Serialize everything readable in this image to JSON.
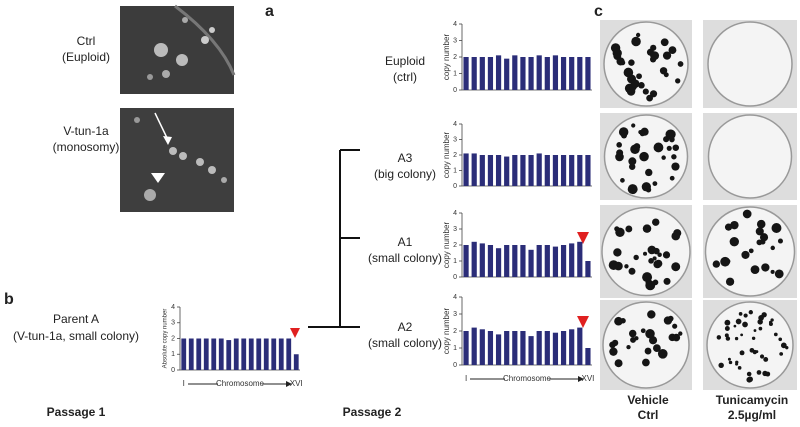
{
  "panels": {
    "a": {
      "label": "a",
      "images": [
        {
          "title": "Ctrl",
          "subtitle": "(Euploid)"
        },
        {
          "title": "V-tun-1a",
          "subtitle": "(monosomy)"
        }
      ]
    },
    "b": {
      "label": "b",
      "passages": [
        "Passage 1",
        "Passage 2"
      ]
    },
    "c": {
      "label": "c",
      "columns": [
        {
          "line1": "Vehicle",
          "line2": "Ctrl"
        },
        {
          "line1": "Tunicamycin",
          "line2": "2.5µg/ml"
        }
      ]
    }
  },
  "chart_data": [
    {
      "type": "bar",
      "title": "Parent A",
      "subtitle": "(V-tun-1a, small colony)",
      "ylabel": "Absolute copy number",
      "xlabel": "Chromosome",
      "color": "#2b2d78",
      "categories": [
        "I",
        null,
        null,
        null,
        null,
        null,
        null,
        null,
        null,
        null,
        null,
        null,
        null,
        null,
        null,
        "XVI"
      ],
      "values": [
        2.0,
        2.0,
        2.0,
        2.0,
        2.0,
        2.0,
        1.9,
        2.0,
        2.0,
        2.0,
        2.0,
        2.0,
        2.0,
        2.0,
        2.0,
        1.0
      ],
      "ylim": [
        0,
        4
      ],
      "yticks": [
        0,
        1,
        2,
        3,
        4
      ]
    },
    {
      "type": "bar",
      "title": "Euploid",
      "subtitle": "(ctrl)",
      "ylabel": "copy number",
      "color": "#2b2d78",
      "categories": [
        null,
        null,
        null,
        null,
        null,
        null,
        null,
        null,
        null,
        null,
        null,
        null,
        null,
        null,
        null,
        null
      ],
      "values": [
        2.0,
        2.0,
        2.0,
        2.0,
        2.1,
        1.9,
        2.1,
        2.0,
        2.0,
        2.1,
        2.0,
        2.1,
        2.0,
        2.0,
        2.0,
        2.0
      ],
      "ylim": [
        0,
        4
      ],
      "yticks": [
        0,
        1,
        2,
        3,
        4
      ]
    },
    {
      "type": "bar",
      "title": "A3",
      "subtitle": "(big colony)",
      "ylabel": "copy number",
      "color": "#2b2d78",
      "categories": [
        null,
        null,
        null,
        null,
        null,
        null,
        null,
        null,
        null,
        null,
        null,
        null,
        null,
        null,
        null,
        null
      ],
      "values": [
        2.1,
        2.1,
        2.0,
        2.0,
        2.0,
        1.9,
        2.0,
        2.0,
        2.0,
        2.1,
        2.0,
        2.0,
        2.0,
        2.0,
        2.0,
        2.0
      ],
      "ylim": [
        0,
        4
      ],
      "yticks": [
        0,
        1,
        2,
        3,
        4
      ]
    },
    {
      "type": "bar",
      "title": "A1",
      "subtitle": "(small colony)",
      "ylabel": "copy number",
      "color": "#2b2d78",
      "categories": [
        null,
        null,
        null,
        null,
        null,
        null,
        null,
        null,
        null,
        null,
        null,
        null,
        null,
        null,
        null,
        null
      ],
      "values": [
        2.0,
        2.2,
        2.1,
        2.0,
        1.8,
        2.0,
        2.0,
        2.0,
        1.7,
        2.0,
        2.0,
        1.9,
        2.0,
        2.1,
        2.2,
        1.0
      ],
      "ylim": [
        0,
        4
      ],
      "yticks": [
        0,
        1,
        2,
        3,
        4
      ]
    },
    {
      "type": "bar",
      "title": "A2",
      "subtitle": "(small colony)",
      "ylabel": "copy number",
      "xlabel": "Chromosome",
      "color": "#2b2d78",
      "categories": [
        "I",
        null,
        null,
        null,
        null,
        null,
        null,
        null,
        null,
        null,
        null,
        null,
        null,
        null,
        null,
        "XVI"
      ],
      "values": [
        2.0,
        2.2,
        2.1,
        2.0,
        1.8,
        2.0,
        2.0,
        2.0,
        1.7,
        2.0,
        2.0,
        1.9,
        2.0,
        2.1,
        2.2,
        1.0
      ],
      "ylim": [
        0,
        4
      ],
      "yticks": [
        0,
        1,
        2,
        3,
        4
      ]
    }
  ]
}
